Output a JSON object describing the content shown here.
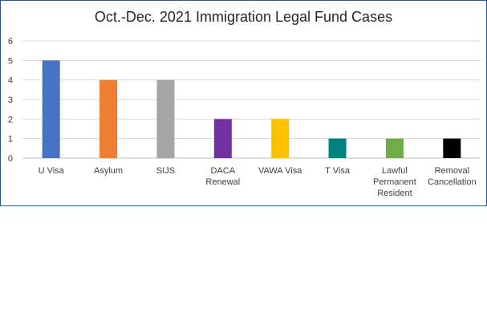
{
  "chart_data": {
    "type": "bar",
    "title": "Oct.-Dec. 2021 Immigration Legal Fund Cases",
    "categories": [
      [
        "U Visa"
      ],
      [
        "Asylum"
      ],
      [
        "SIJS"
      ],
      [
        "DACA",
        "Renewal"
      ],
      [
        "VAWA Visa"
      ],
      [
        "T Visa"
      ],
      [
        "Lawful",
        "Permanent",
        "Resident"
      ],
      [
        "Removal",
        "Cancellation"
      ]
    ],
    "values": [
      5,
      4,
      4,
      2,
      2,
      1,
      1,
      1
    ],
    "colors": [
      "#4472c4",
      "#ed7d31",
      "#a5a5a5",
      "#7030a0",
      "#ffc000",
      "#00827f",
      "#70ad47",
      "#000000"
    ],
    "ylim": [
      0,
      6
    ],
    "yticks": [
      "0",
      "1",
      "2",
      "3",
      "4",
      "5",
      "6"
    ],
    "grid": true,
    "legend": "none"
  }
}
